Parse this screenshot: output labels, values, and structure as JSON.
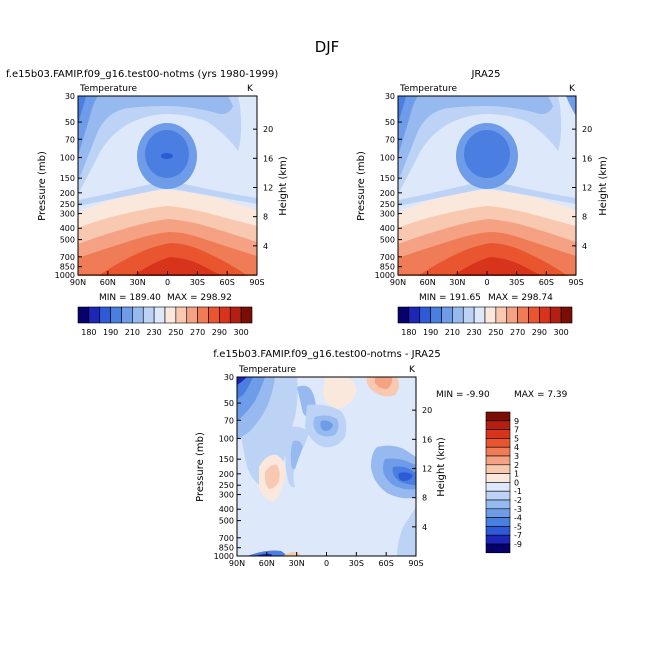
{
  "page_title": "DJF",
  "chart_data": [
    {
      "type": "heatmap",
      "title": "f.e15b03.FAMIP.f09_g16.test00-notms (yrs 1980-1999)",
      "variable": "Temperature",
      "units": "K",
      "ylabel": "Pressure (mb)",
      "ylabel_right": "Height (km)",
      "xticks": [
        "90N",
        "60N",
        "30N",
        "0",
        "30S",
        "60S",
        "90S"
      ],
      "yticks": [
        "30",
        "50",
        "70",
        "100",
        "150",
        "200",
        "250",
        "300",
        "400",
        "500",
        "700",
        "850",
        "1000"
      ],
      "height_ticks": [
        "4",
        "8",
        "12",
        "16",
        "20"
      ],
      "min_label": "MIN = 189.40",
      "max_label": "MAX = 298.92",
      "min": 189.4,
      "max": 298.92,
      "colorbar_levels": [
        "180",
        "190",
        "210",
        "230",
        "250",
        "270",
        "290",
        "300"
      ]
    },
    {
      "type": "heatmap",
      "title": "JRA25",
      "variable": "Temperature",
      "units": "K",
      "ylabel": "Pressure (mb)",
      "ylabel_right": "Height (km)",
      "xticks": [
        "90N",
        "60N",
        "30N",
        "0",
        "30S",
        "60S",
        "90S"
      ],
      "yticks": [
        "30",
        "50",
        "70",
        "100",
        "150",
        "200",
        "250",
        "300",
        "400",
        "500",
        "700",
        "850",
        "1000"
      ],
      "height_ticks": [
        "4",
        "8",
        "12",
        "16",
        "20"
      ],
      "min_label": "MIN = 191.65",
      "max_label": "MAX = 298.74",
      "min": 191.65,
      "max": 298.74,
      "colorbar_levels": [
        "180",
        "190",
        "210",
        "230",
        "250",
        "270",
        "290",
        "300"
      ]
    },
    {
      "type": "heatmap",
      "title": "f.e15b03.FAMIP.f09_g16.test00-notms - JRA25",
      "variable": "Temperature",
      "units": "K",
      "ylabel": "Pressure (mb)",
      "ylabel_right": "Height (km)",
      "xticks": [
        "90N",
        "60N",
        "30N",
        "0",
        "30S",
        "60S",
        "90S"
      ],
      "yticks": [
        "30",
        "50",
        "70",
        "100",
        "150",
        "200",
        "250",
        "300",
        "400",
        "500",
        "700",
        "850",
        "1000"
      ],
      "height_ticks": [
        "4",
        "8",
        "12",
        "16",
        "20"
      ],
      "min_label": "MIN = -9.90",
      "max_label": "MAX = 7.39",
      "min": -9.9,
      "max": 7.39,
      "colorbar_levels": [
        "9",
        "7",
        "5",
        "4",
        "3",
        "2",
        "1",
        "0",
        "-1",
        "-2",
        "-3",
        "-4",
        "-5",
        "-7",
        "-9"
      ]
    }
  ],
  "colors": {
    "abs_scale": [
      "#08006b",
      "#1d26b8",
      "#2e5ad8",
      "#4a7ee0",
      "#6e9ce8",
      "#96b9f0",
      "#bdd3f6",
      "#dde8fa",
      "#fbe8dc",
      "#f8c9b0",
      "#f4a283",
      "#ef7c56",
      "#e8552f",
      "#d8341c",
      "#b41f10",
      "#7a0d04"
    ],
    "diff_scale": [
      "#7a0d04",
      "#b41f10",
      "#d8341c",
      "#e8552f",
      "#ef7c56",
      "#f4a283",
      "#f8c9b0",
      "#fbe8dc",
      "#dde8fa",
      "#bdd3f6",
      "#96b9f0",
      "#6e9ce8",
      "#4a7ee0",
      "#2e5ad8",
      "#1d26b8",
      "#08006b"
    ]
  }
}
